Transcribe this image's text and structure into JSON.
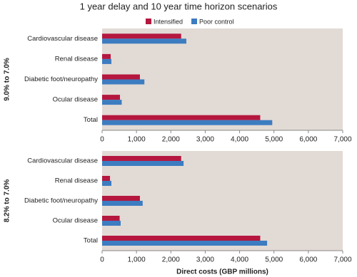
{
  "chart_data": [
    {
      "type": "bar",
      "orientation": "horizontal",
      "title": "1 year delay and 10 year time horizon scenarios",
      "ylabel": "9.0% to 7.0%",
      "categories": [
        "Cardiovascular disease",
        "Renal disease",
        "Diabetic foot/neuropathy",
        "Ocular disease",
        "Total"
      ],
      "series": [
        {
          "name": "Intensified",
          "color": "#b5173f",
          "values": [
            2300,
            250,
            1100,
            520,
            4600
          ]
        },
        {
          "name": "Poor control",
          "color": "#3d7cc0",
          "values": [
            2450,
            270,
            1230,
            570,
            4950
          ]
        }
      ],
      "xlim": [
        0,
        7000
      ],
      "xticks": [
        0,
        {
          "value": 1000,
          "label": "1,000"
        },
        {
          "value": 2000,
          "label": "2,000"
        },
        {
          "value": 3000,
          "label": "3,000"
        },
        {
          "value": 4000,
          "label": "4,000"
        },
        {
          "value": 5000,
          "label": "5,000"
        },
        {
          "value": 6000,
          "label": "6,000"
        },
        {
          "value": 7000,
          "label": "7,000"
        }
      ]
    },
    {
      "type": "bar",
      "orientation": "horizontal",
      "ylabel": "8.2% to 7.0%",
      "xlabel": "Direct costs (GBP millions)",
      "categories": [
        "Cardiovascular disease",
        "Renal disease",
        "Diabetic foot/neuropathy",
        "Ocular disease",
        "Total"
      ],
      "series": [
        {
          "name": "Intensified",
          "color": "#b5173f",
          "values": [
            2300,
            230,
            1100,
            510,
            4600
          ]
        },
        {
          "name": "Poor control",
          "color": "#3d7cc0",
          "values": [
            2370,
            270,
            1180,
            540,
            4800
          ]
        }
      ],
      "xlim": [
        0,
        7000
      ],
      "xticks": [
        0,
        {
          "value": 1000,
          "label": "1,000"
        },
        {
          "value": 2000,
          "label": "2,000"
        },
        {
          "value": 3000,
          "label": "3,000"
        },
        {
          "value": 4000,
          "label": "4,000"
        },
        {
          "value": 5000,
          "label": "5,000"
        },
        {
          "value": 6000,
          "label": "6,000"
        },
        {
          "value": 7000,
          "label": "7,000"
        }
      ]
    }
  ]
}
